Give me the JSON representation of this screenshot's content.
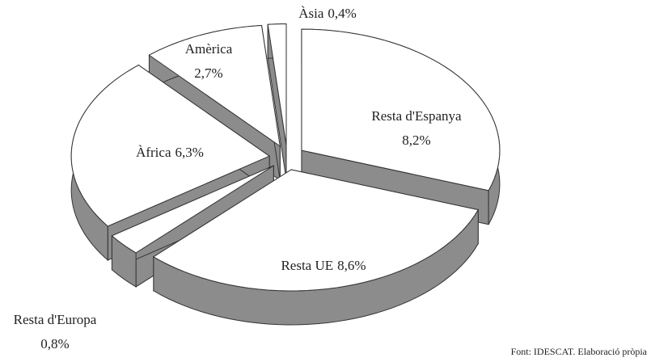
{
  "chart_data": {
    "type": "pie3d",
    "categories": [
      "Resta d'Espanya",
      "Resta UE",
      "Resta d'Europa",
      "Àfrica",
      "Amèrica",
      "Àsia"
    ],
    "values": [
      8.2,
      8.6,
      0.8,
      6.3,
      2.7,
      0.4
    ],
    "value_labels": [
      "8,2%",
      "8,6%",
      "0,8%",
      "6,3%",
      "2,7%",
      "0,4%"
    ],
    "source": "Font: IDESCAT. Elaboració pròpia",
    "top_color": "#ffffff",
    "side_color": "#8c8c8c"
  }
}
